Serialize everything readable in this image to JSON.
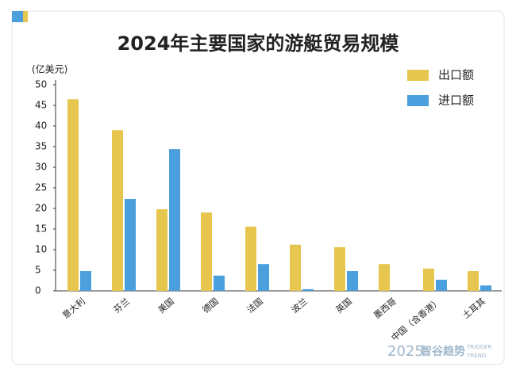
{
  "chart_data": {
    "type": "bar",
    "title": "2024年主要国家的游艇贸易规模",
    "y_label": "(亿美元)",
    "categories": [
      "意大利",
      "芬兰",
      "美国",
      "德国",
      "法国",
      "波兰",
      "英国",
      "墨西哥",
      "中国（含香港）",
      "土耳其"
    ],
    "series": [
      {
        "name": "出口额",
        "color": "#e6c64e",
        "values": [
          46.5,
          39,
          19.8,
          19,
          15.6,
          11.2,
          10.6,
          6.5,
          5.4,
          4.8
        ]
      },
      {
        "name": "进口额",
        "color": "#4a9fdc",
        "values": [
          4.8,
          22.3,
          34.4,
          3.7,
          6.5,
          0.4,
          4.8,
          0,
          2.7,
          1.3
        ]
      }
    ],
    "ylim": [
      0,
      50
    ],
    "yticks": [
      0,
      5,
      10,
      15,
      20,
      25,
      30,
      35,
      40,
      45,
      50
    ],
    "legend": "top-right",
    "watermark": {
      "year": "2025",
      "brand": "智谷趋势",
      "en1": "TRIGGER",
      "en2": "TREND"
    }
  }
}
